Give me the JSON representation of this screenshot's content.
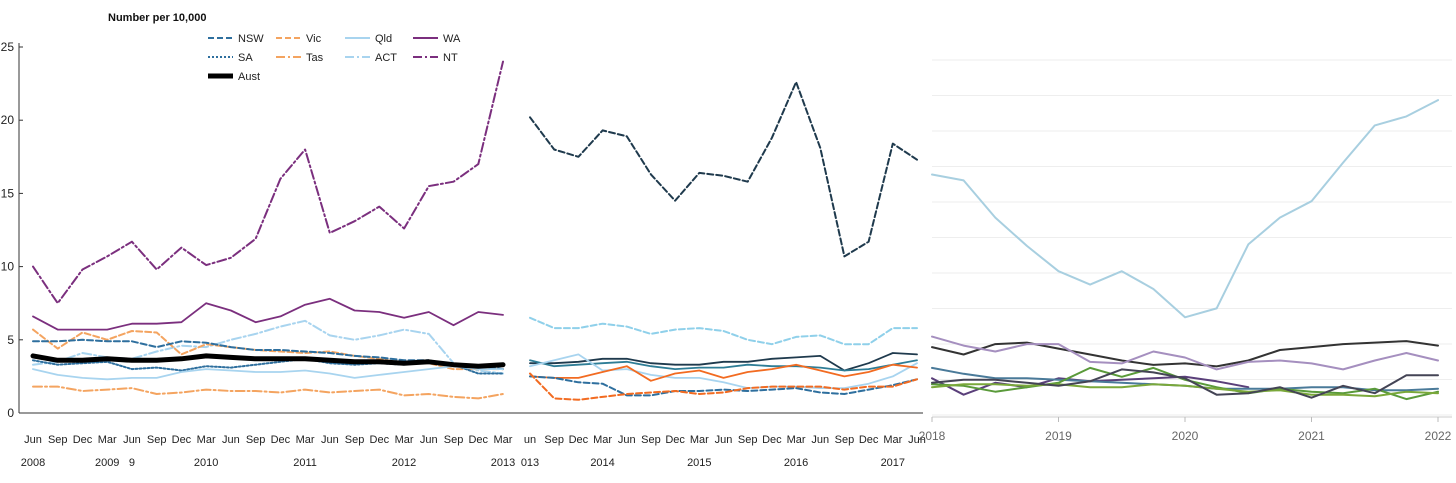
{
  "chart_data": [
    {
      "type": "line",
      "panel": "left",
      "ylabel": "Number per 10,000",
      "yticks": [
        0,
        5,
        10,
        15,
        20,
        25
      ],
      "ylim": [
        0,
        25
      ],
      "x": [
        "Jun|2008",
        "Sep|",
        "Dec|",
        "Mar|2009",
        "Jun|9",
        "Sep|",
        "Dec|",
        "Mar|2010",
        "Jun|",
        "Sep|",
        "Dec|",
        "Mar|2011",
        "Jun|",
        "Sep|",
        "Dec|",
        "Mar|2012",
        "Jun|",
        "Sep|",
        "Dec|",
        "Mar|2013"
      ],
      "legend": [
        {
          "name": "NSW",
          "color": "#2e6f9e",
          "style": "dash"
        },
        {
          "name": "Vic",
          "color": "#f4a460",
          "style": "dash"
        },
        {
          "name": "Qld",
          "color": "#a8d4ef",
          "style": "solid"
        },
        {
          "name": "WA",
          "color": "#7b2f7e",
          "style": "solid"
        },
        {
          "name": "SA",
          "color": "#2e6f9e",
          "style": "dot"
        },
        {
          "name": "Tas",
          "color": "#f4a460",
          "style": "dashdot"
        },
        {
          "name": "ACT",
          "color": "#a8d4ef",
          "style": "dashdot"
        },
        {
          "name": "NT",
          "color": "#7b2f7e",
          "style": "dashdot"
        },
        {
          "name": "Aust",
          "color": "#000000",
          "style": "thick"
        }
      ],
      "series": [
        {
          "name": "NT",
          "color": "#7b2f7e",
          "style": "dashdot",
          "values": [
            10,
            7.5,
            9.8,
            10.7,
            11.7,
            9.8,
            11.3,
            10.1,
            10.6,
            11.9,
            16.0,
            18.0,
            12.3,
            13.1,
            14.1,
            12.6,
            15.5,
            15.8,
            17.0,
            24.0
          ]
        },
        {
          "name": "WA",
          "color": "#7b2f7e",
          "style": "solid",
          "values": [
            6.6,
            5.7,
            5.7,
            5.7,
            6.1,
            6.1,
            6.2,
            7.5,
            7.0,
            6.2,
            6.6,
            7.4,
            7.8,
            7.0,
            6.9,
            6.5,
            6.9,
            6.0,
            6.9,
            6.7
          ]
        },
        {
          "name": "ACT",
          "color": "#a8d4ef",
          "style": "dashdot",
          "values": [
            3.3,
            3.5,
            4.1,
            3.8,
            3.7,
            4.2,
            4.6,
            4.5,
            5.0,
            5.4,
            5.9,
            6.3,
            5.3,
            5.0,
            5.3,
            5.7,
            5.4,
            3.4,
            2.9,
            2.7
          ]
        },
        {
          "name": "Vic",
          "color": "#f4a460",
          "style": "dash",
          "values": [
            5.7,
            4.4,
            5.5,
            5.0,
            5.6,
            5.5,
            4.0,
            4.7,
            4.5,
            4.3,
            4.2,
            4.1,
            4.2,
            3.9,
            3.7,
            3.4,
            3.4,
            3.0,
            3.0,
            3.0
          ]
        },
        {
          "name": "NSW",
          "color": "#2e6f9e",
          "style": "dash",
          "values": [
            4.9,
            4.9,
            5.0,
            4.9,
            4.9,
            4.5,
            4.9,
            4.8,
            4.5,
            4.3,
            4.3,
            4.2,
            4.1,
            3.9,
            3.8,
            3.6,
            3.6,
            3.3,
            3.2,
            3.0
          ]
        },
        {
          "name": "SA",
          "color": "#2e6f9e",
          "style": "dot",
          "values": [
            3.6,
            3.3,
            3.4,
            3.5,
            3.0,
            3.1,
            2.9,
            3.2,
            3.1,
            3.3,
            3.5,
            3.7,
            3.4,
            3.3,
            3.4,
            3.3,
            3.5,
            3.3,
            2.7,
            2.7
          ]
        },
        {
          "name": "Qld",
          "color": "#a8d4ef",
          "style": "solid",
          "values": [
            3.0,
            2.6,
            2.4,
            2.3,
            2.4,
            2.4,
            2.8,
            3.0,
            2.9,
            2.8,
            2.8,
            2.9,
            2.7,
            2.4,
            2.6,
            2.8,
            3.0,
            3.2,
            3.0,
            3.0
          ]
        },
        {
          "name": "Tas",
          "color": "#f4a460",
          "style": "dashdot",
          "values": [
            1.8,
            1.8,
            1.5,
            1.6,
            1.7,
            1.3,
            1.4,
            1.6,
            1.5,
            1.5,
            1.4,
            1.6,
            1.4,
            1.5,
            1.6,
            1.2,
            1.3,
            1.1,
            1.0,
            1.3
          ]
        },
        {
          "name": "Aust",
          "color": "#000000",
          "style": "thick",
          "values": [
            3.9,
            3.6,
            3.6,
            3.7,
            3.6,
            3.6,
            3.7,
            3.9,
            3.8,
            3.7,
            3.7,
            3.7,
            3.6,
            3.5,
            3.5,
            3.4,
            3.5,
            3.3,
            3.2,
            3.3
          ]
        }
      ]
    },
    {
      "type": "line",
      "panel": "middle",
      "ylim": [
        0,
        25
      ],
      "x": [
        "un|013",
        "Sep|",
        "Dec|",
        "Mar|2014",
        "Jun|",
        "Sep|",
        "Dec|",
        "Mar|2015",
        "Jun|",
        "Sep|",
        "Dec|",
        "Mar|2016",
        "Jun|",
        "Sep|",
        "Dec|",
        "Mar|2017",
        "Jun|"
      ],
      "series": [
        {
          "name": "NT",
          "color": "#1f3a4d",
          "style": "dash",
          "values": [
            20.2,
            18.0,
            17.5,
            19.3,
            18.9,
            16.3,
            14.5,
            16.4,
            16.2,
            15.8,
            18.8,
            22.6,
            18.1,
            10.7,
            11.7,
            18.4,
            17.3
          ]
        },
        {
          "name": "ACT",
          "color": "#8fd0ea",
          "style": "dash",
          "values": [
            6.5,
            5.8,
            5.8,
            6.1,
            5.9,
            5.4,
            5.7,
            5.8,
            5.6,
            5.0,
            4.7,
            5.2,
            5.3,
            4.7,
            4.7,
            5.8,
            5.8
          ]
        },
        {
          "name": "Dark",
          "color": "#1f3a4d",
          "style": "solid",
          "values": [
            3.4,
            3.4,
            3.5,
            3.7,
            3.7,
            3.4,
            3.3,
            3.3,
            3.5,
            3.5,
            3.7,
            3.8,
            3.9,
            2.9,
            3.4,
            4.1,
            4.0
          ]
        },
        {
          "name": "Teal",
          "color": "#2e7d96",
          "style": "solid",
          "values": [
            3.6,
            3.2,
            3.3,
            3.4,
            3.5,
            3.2,
            3.0,
            3.1,
            3.1,
            3.3,
            3.2,
            3.2,
            3.1,
            2.9,
            3.0,
            3.3,
            3.6
          ]
        },
        {
          "name": "Light",
          "color": "#a8d4ef",
          "style": "solid",
          "values": [
            3.2,
            3.6,
            4.0,
            2.9,
            3.0,
            2.6,
            2.4,
            2.4,
            2.1,
            1.7,
            1.8,
            1.8,
            1.7,
            1.7,
            2.0,
            2.5,
            3.4
          ]
        },
        {
          "name": "Orange",
          "color": "#f26b21",
          "style": "solid",
          "values": [
            2.5,
            2.4,
            2.4,
            2.8,
            3.2,
            2.2,
            2.7,
            2.9,
            2.4,
            2.8,
            3.0,
            3.3,
            2.9,
            2.5,
            2.8,
            3.3,
            3.1
          ]
        },
        {
          "name": "Navy dashed",
          "color": "#2e6f9e",
          "style": "dash",
          "values": [
            2.5,
            2.4,
            2.1,
            2.0,
            1.2,
            1.2,
            1.5,
            1.5,
            1.6,
            1.5,
            1.6,
            1.7,
            1.4,
            1.3,
            1.6,
            1.9,
            2.3
          ]
        },
        {
          "name": "Orange dashed",
          "color": "#f26b21",
          "style": "dash",
          "values": [
            2.7,
            1.0,
            0.9,
            1.1,
            1.3,
            1.4,
            1.5,
            1.3,
            1.4,
            1.7,
            1.8,
            1.8,
            1.8,
            1.6,
            1.8,
            1.8,
            2.3
          ]
        }
      ]
    },
    {
      "type": "line",
      "panel": "right",
      "ylim": [
        0,
        25
      ],
      "categories": [
        "2018",
        "2019",
        "2020",
        "2021",
        "2022"
      ],
      "xrange": [
        2018,
        2022
      ],
      "series": [
        {
          "name": "Light blue",
          "color": "#a8cfe0",
          "x": [
            2018,
            2018.25,
            2018.5,
            2018.75,
            2019,
            2019.25,
            2019.5,
            2019.75,
            2020,
            2020.25,
            2020.5,
            2020.75,
            2021,
            2021.25,
            2021.5,
            2021.75,
            2022
          ],
          "values": [
            16.3,
            15.9,
            13.4,
            11.5,
            9.8,
            8.9,
            9.8,
            8.6,
            6.7,
            7.3,
            11.6,
            13.4,
            14.5,
            17.1,
            19.6,
            20.2,
            21.3
          ]
        },
        {
          "name": "Black",
          "color": "#333333",
          "x": [
            2018,
            2018.25,
            2018.5,
            2018.75,
            2019,
            2019.25,
            2019.5,
            2019.75,
            2020,
            2020.25,
            2020.5,
            2020.75,
            2021,
            2021.25,
            2021.5,
            2021.75,
            2022
          ],
          "values": [
            4.7,
            4.2,
            4.9,
            5.0,
            4.6,
            4.2,
            3.8,
            3.5,
            3.6,
            3.4,
            3.8,
            4.5,
            4.7,
            4.9,
            5.0,
            5.1,
            4.8
          ]
        },
        {
          "name": "Lavender",
          "color": "#a58fbf",
          "x": [
            2018,
            2018.25,
            2018.5,
            2018.75,
            2019,
            2019.25,
            2019.5,
            2019.75,
            2020,
            2020.25,
            2020.5,
            2020.75,
            2021,
            2021.25,
            2021.5,
            2021.75,
            2022
          ],
          "values": [
            5.4,
            4.8,
            4.4,
            4.9,
            4.9,
            3.7,
            3.6,
            4.4,
            4.0,
            3.2,
            3.7,
            3.8,
            3.6,
            3.2,
            3.8,
            4.3,
            3.8
          ]
        },
        {
          "name": "Purple",
          "color": "#5a3f7a",
          "x": [
            2018,
            2018.25,
            2018.5,
            2018.75,
            2019,
            2019.25,
            2019.5,
            2019.75,
            2020,
            2020.25,
            2020.5
          ],
          "values": [
            2.6,
            1.5,
            2.3,
            2.0,
            2.6,
            2.4,
            2.5,
            2.6,
            2.7,
            2.4,
            2.0
          ]
        },
        {
          "name": "Slate",
          "color": "#4a7a99",
          "x": [
            2018,
            2018.25,
            2018.5,
            2018.75,
            2019,
            2019.25,
            2019.5,
            2019.75,
            2020,
            2020.25,
            2020.5,
            2020.75,
            2021,
            2021.25,
            2021.5,
            2021.75,
            2022
          ],
          "values": [
            3.3,
            2.9,
            2.6,
            2.6,
            2.5,
            2.4,
            2.3,
            2.2,
            2.1,
            1.9,
            1.9,
            1.9,
            2.0,
            2.0,
            1.8,
            1.8,
            1.9
          ]
        },
        {
          "name": "Green",
          "color": "#5a9a3a",
          "x": [
            2018,
            2018.25,
            2018.5,
            2018.75,
            2019,
            2019.25,
            2019.5,
            2019.75,
            2020,
            2020.25,
            2020.5,
            2020.75,
            2021,
            2021.25,
            2021.5,
            2021.75,
            2022
          ],
          "values": [
            2.2,
            2.1,
            1.7,
            2.0,
            2.3,
            3.3,
            2.7,
            3.3,
            2.5,
            2.0,
            1.6,
            1.9,
            1.7,
            1.6,
            1.9,
            1.2,
            1.7
          ]
        },
        {
          "name": "Olive",
          "color": "#7aa83a",
          "x": [
            2018,
            2018.25,
            2018.5,
            2018.75,
            2019,
            2019.25,
            2019.5,
            2019.75,
            2020,
            2020.25,
            2020.5,
            2020.75,
            2021,
            2021.25,
            2021.5,
            2021.75,
            2022
          ],
          "values": [
            2.0,
            2.2,
            2.2,
            2.1,
            2.2,
            2.0,
            2.0,
            2.2,
            2.1,
            1.9,
            1.7,
            1.8,
            1.5,
            1.5,
            1.4,
            1.7,
            1.6
          ]
        },
        {
          "name": "Charcoal",
          "color": "#444455",
          "x": [
            2018,
            2018.25,
            2018.5,
            2018.75,
            2019,
            2019.25,
            2019.5,
            2019.75,
            2020,
            2020.25,
            2020.5,
            2020.75,
            2021,
            2021.25,
            2021.5,
            2021.75,
            2022
          ],
          "values": [
            2.3,
            2.5,
            2.5,
            2.3,
            2.1,
            2.4,
            3.2,
            3.0,
            2.6,
            1.5,
            1.6,
            2.0,
            1.3,
            2.1,
            1.6,
            2.8,
            2.8
          ]
        }
      ]
    }
  ]
}
